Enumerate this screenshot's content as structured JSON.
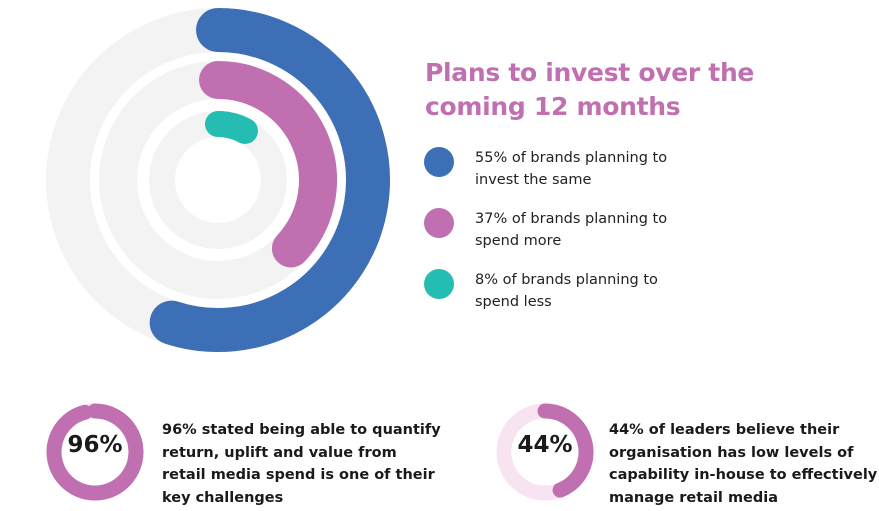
{
  "chart_data": [
    {
      "type": "radial-bar",
      "title": "Plans to invest over the coming 12 months",
      "series": [
        {
          "name": "55% of brands planning to invest the same",
          "value": 55,
          "color": "#3d6fb6"
        },
        {
          "name": "37% of brands planning to spend more",
          "value": 37,
          "color": "#c070b0"
        },
        {
          "name": "8% of brands planning to spend less",
          "value": 8,
          "color": "#25bcb2"
        }
      ],
      "track_color": "#f3f3f3"
    },
    {
      "type": "donut",
      "value": 96,
      "label": "96%",
      "text": "96% stated being able to quantify return, uplift and value from retail media spend is one of their key challenges",
      "color": "#c070b0",
      "track_color": "#f7e4f0"
    },
    {
      "type": "donut",
      "value": 44,
      "label": "44%",
      "text": "44% of leaders believe their organisation has low levels of capability in-house to effectively manage retail media",
      "color": "#c070b0",
      "track_color": "#f7e4f0"
    }
  ]
}
